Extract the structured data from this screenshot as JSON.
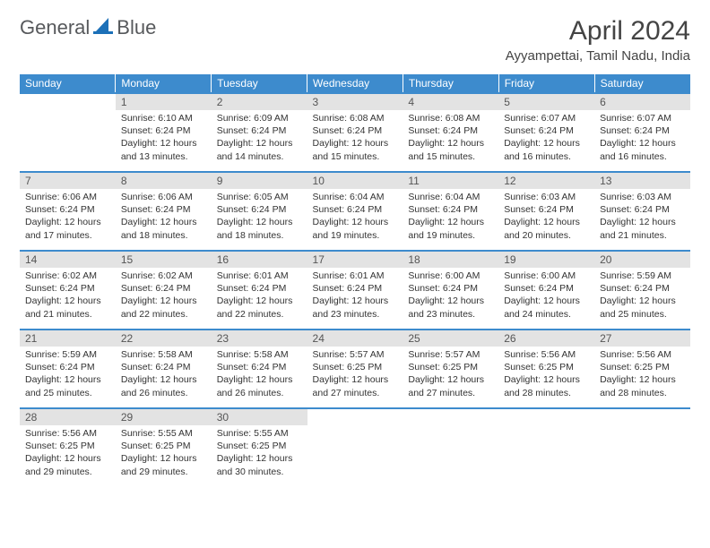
{
  "brand": {
    "part1": "General",
    "part2": "Blue"
  },
  "title": "April 2024",
  "location": "Ayyampettai, Tamil Nadu, India",
  "colors": {
    "header_bg": "#3d8bcd",
    "header_text": "#ffffff",
    "daynum_bg": "#e3e3e3",
    "border": "#3d8bcd",
    "text": "#333333",
    "logo_gray": "#57595c",
    "logo_blue": "#1c70b8"
  },
  "weekdays": [
    "Sunday",
    "Monday",
    "Tuesday",
    "Wednesday",
    "Thursday",
    "Friday",
    "Saturday"
  ],
  "startOffset": 1,
  "daysInMonth": 30,
  "days": {
    "1": {
      "sr": "6:10 AM",
      "ss": "6:24 PM",
      "dl": "12 hours and 13 minutes."
    },
    "2": {
      "sr": "6:09 AM",
      "ss": "6:24 PM",
      "dl": "12 hours and 14 minutes."
    },
    "3": {
      "sr": "6:08 AM",
      "ss": "6:24 PM",
      "dl": "12 hours and 15 minutes."
    },
    "4": {
      "sr": "6:08 AM",
      "ss": "6:24 PM",
      "dl": "12 hours and 15 minutes."
    },
    "5": {
      "sr": "6:07 AM",
      "ss": "6:24 PM",
      "dl": "12 hours and 16 minutes."
    },
    "6": {
      "sr": "6:07 AM",
      "ss": "6:24 PM",
      "dl": "12 hours and 16 minutes."
    },
    "7": {
      "sr": "6:06 AM",
      "ss": "6:24 PM",
      "dl": "12 hours and 17 minutes."
    },
    "8": {
      "sr": "6:06 AM",
      "ss": "6:24 PM",
      "dl": "12 hours and 18 minutes."
    },
    "9": {
      "sr": "6:05 AM",
      "ss": "6:24 PM",
      "dl": "12 hours and 18 minutes."
    },
    "10": {
      "sr": "6:04 AM",
      "ss": "6:24 PM",
      "dl": "12 hours and 19 minutes."
    },
    "11": {
      "sr": "6:04 AM",
      "ss": "6:24 PM",
      "dl": "12 hours and 19 minutes."
    },
    "12": {
      "sr": "6:03 AM",
      "ss": "6:24 PM",
      "dl": "12 hours and 20 minutes."
    },
    "13": {
      "sr": "6:03 AM",
      "ss": "6:24 PM",
      "dl": "12 hours and 21 minutes."
    },
    "14": {
      "sr": "6:02 AM",
      "ss": "6:24 PM",
      "dl": "12 hours and 21 minutes."
    },
    "15": {
      "sr": "6:02 AM",
      "ss": "6:24 PM",
      "dl": "12 hours and 22 minutes."
    },
    "16": {
      "sr": "6:01 AM",
      "ss": "6:24 PM",
      "dl": "12 hours and 22 minutes."
    },
    "17": {
      "sr": "6:01 AM",
      "ss": "6:24 PM",
      "dl": "12 hours and 23 minutes."
    },
    "18": {
      "sr": "6:00 AM",
      "ss": "6:24 PM",
      "dl": "12 hours and 23 minutes."
    },
    "19": {
      "sr": "6:00 AM",
      "ss": "6:24 PM",
      "dl": "12 hours and 24 minutes."
    },
    "20": {
      "sr": "5:59 AM",
      "ss": "6:24 PM",
      "dl": "12 hours and 25 minutes."
    },
    "21": {
      "sr": "5:59 AM",
      "ss": "6:24 PM",
      "dl": "12 hours and 25 minutes."
    },
    "22": {
      "sr": "5:58 AM",
      "ss": "6:24 PM",
      "dl": "12 hours and 26 minutes."
    },
    "23": {
      "sr": "5:58 AM",
      "ss": "6:24 PM",
      "dl": "12 hours and 26 minutes."
    },
    "24": {
      "sr": "5:57 AM",
      "ss": "6:25 PM",
      "dl": "12 hours and 27 minutes."
    },
    "25": {
      "sr": "5:57 AM",
      "ss": "6:25 PM",
      "dl": "12 hours and 27 minutes."
    },
    "26": {
      "sr": "5:56 AM",
      "ss": "6:25 PM",
      "dl": "12 hours and 28 minutes."
    },
    "27": {
      "sr": "5:56 AM",
      "ss": "6:25 PM",
      "dl": "12 hours and 28 minutes."
    },
    "28": {
      "sr": "5:56 AM",
      "ss": "6:25 PM",
      "dl": "12 hours and 29 minutes."
    },
    "29": {
      "sr": "5:55 AM",
      "ss": "6:25 PM",
      "dl": "12 hours and 29 minutes."
    },
    "30": {
      "sr": "5:55 AM",
      "ss": "6:25 PM",
      "dl": "12 hours and 30 minutes."
    }
  },
  "labels": {
    "sunrise": "Sunrise:",
    "sunset": "Sunset:",
    "daylight": "Daylight:"
  }
}
